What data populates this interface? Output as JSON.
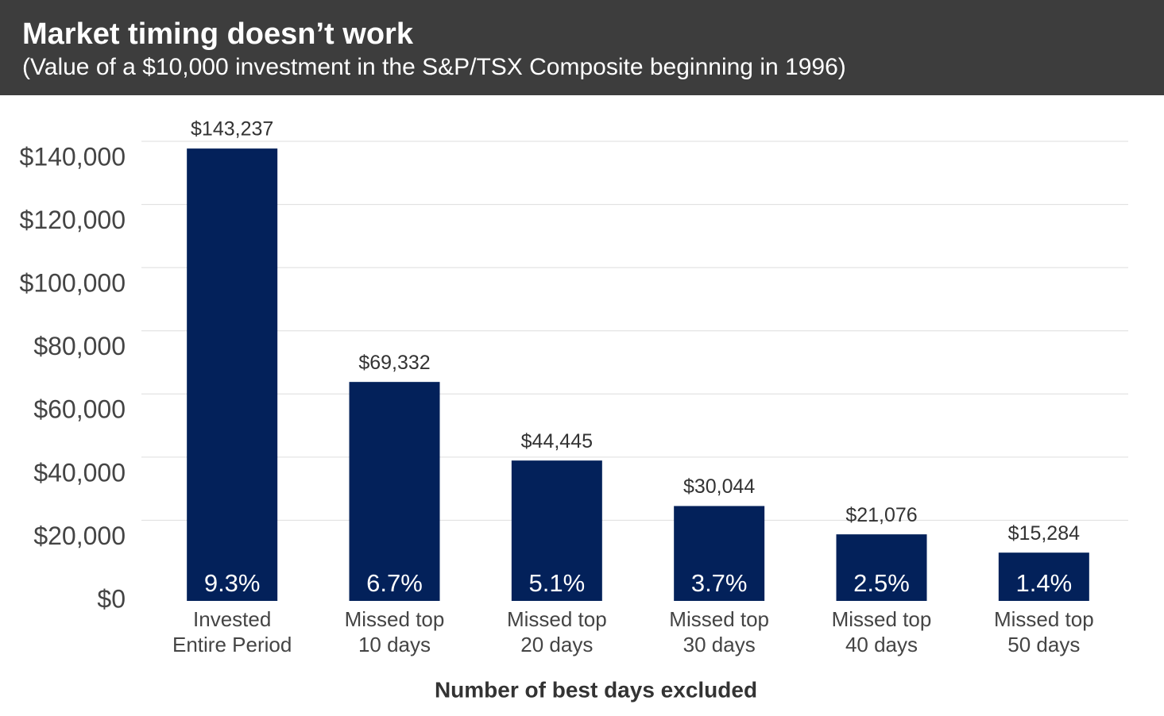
{
  "chart_data": {
    "type": "bar",
    "title": "Market timing doesn’t work",
    "subtitle": "(Value of a $10,000 investment in the S&P/TSX Composite beginning in 1996)",
    "x_label": "Number of best days excluded",
    "categories": [
      [
        "Invested",
        "Entire Period"
      ],
      [
        "Missed top",
        "10 days"
      ],
      [
        "Missed top",
        "20 days"
      ],
      [
        "Missed top",
        "30 days"
      ],
      [
        "Missed top",
        "40 days"
      ],
      [
        "Missed top",
        "50 days"
      ]
    ],
    "values": [
      143237,
      69332,
      44445,
      30044,
      21076,
      15284
    ],
    "value_labels": [
      "$143,237",
      "$69,332",
      "$44,445",
      "$30,044",
      "$21,076",
      "$15,284"
    ],
    "returns": [
      9.3,
      6.7,
      5.1,
      3.7,
      2.5,
      1.4
    ],
    "return_labels": [
      "9.3%",
      "6.7%",
      "5.1%",
      "3.7%",
      "2.5%",
      "1.4%"
    ],
    "color": "#03215a",
    "ylim": [
      0,
      140000
    ],
    "yticks": [
      {
        "value": 0,
        "label": "$0"
      },
      {
        "value": 20000,
        "label": "$20,000"
      },
      {
        "value": 40000,
        "label": "$40,000"
      },
      {
        "value": 60000,
        "label": "$60,000"
      },
      {
        "value": 80000,
        "label": "$80,000"
      },
      {
        "value": 100000,
        "label": "$100,000"
      },
      {
        "value": 120000,
        "label": "$120,000"
      },
      {
        "value": 140000,
        "label": "$140,000"
      }
    ],
    "grid": true
  }
}
